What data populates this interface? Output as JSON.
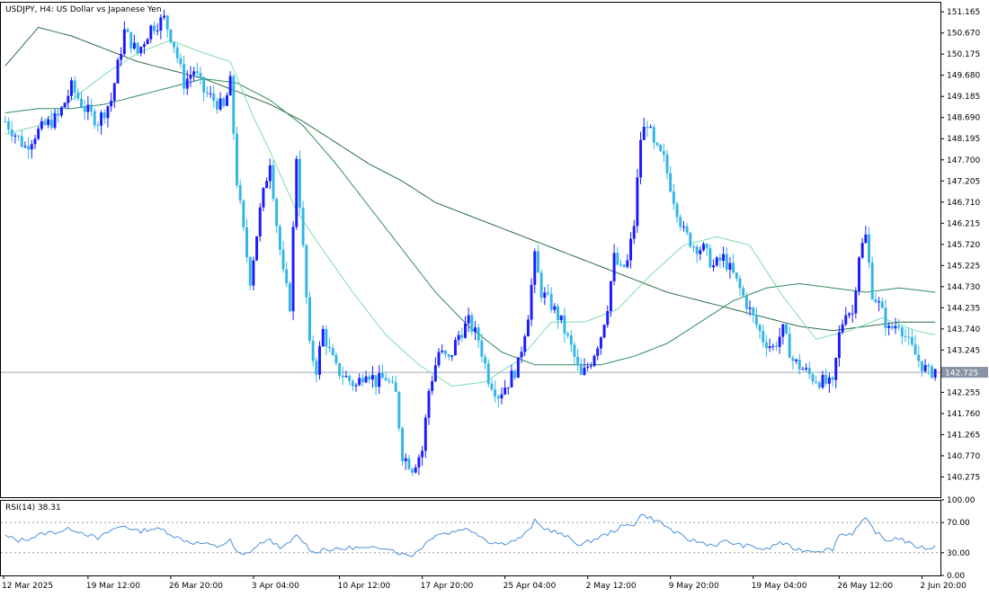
{
  "symbol_title": "USDJPY, H4:  US Dollar vs Japanese Yen",
  "current_price": 142.725,
  "current_price_label": "142.725",
  "rsi_label": "RSI(14) 38.31",
  "colors": {
    "bull": "#1a1aff",
    "bear": "#33b5e5",
    "ma_fast": "#7fdcb0",
    "ma_mid": "#2e8b57",
    "ma_slow": "#2f6b45",
    "rsi": "#4a90d9",
    "price_line": "#a0aab8",
    "price_tag_bg": "#8894a4",
    "grid_level": "#9a9a9a"
  },
  "chart_data": [
    {
      "type": "candlestick",
      "title": "USDJPY, H4:  US Dollar vs Japanese Yen",
      "ylim": [
        139.8,
        151.4
      ],
      "price_axis_ticks": [
        "151.165",
        "150.670",
        "150.175",
        "149.680",
        "149.185",
        "148.690",
        "148.195",
        "147.700",
        "147.205",
        "146.710",
        "146.215",
        "145.720",
        "145.225",
        "144.730",
        "144.235",
        "143.740",
        "143.245",
        "142.750",
        "142.255",
        "141.760",
        "141.265",
        "140.770",
        "140.275"
      ],
      "time_axis_labels": [
        "12 Mar 2025",
        "19 Mar 12:00",
        "26 Mar 20:00",
        "3 Apr 04:00",
        "10 Apr 12:00",
        "17 Apr 20:00",
        "25 Apr 04:00",
        "2 May 12:00",
        "9 May 20:00",
        "19 May 04:00",
        "26 May 12:00",
        "2 Jun 20:00"
      ],
      "close_path": [
        [
          0,
          148.6
        ],
        [
          3,
          148.3
        ],
        [
          6,
          148.0
        ],
        [
          9,
          148.3
        ],
        [
          12,
          148.5
        ],
        [
          16,
          148.7
        ],
        [
          20,
          149.4
        ],
        [
          24,
          148.9
        ],
        [
          28,
          148.6
        ],
        [
          32,
          149.1
        ],
        [
          36,
          150.7
        ],
        [
          40,
          150.2
        ],
        [
          44,
          150.8
        ],
        [
          48,
          151.0
        ],
        [
          51,
          150.4
        ],
        [
          54,
          149.5
        ],
        [
          57,
          149.8
        ],
        [
          60,
          149.3
        ],
        [
          63,
          149.1
        ],
        [
          66,
          148.9
        ],
        [
          68,
          149.5
        ],
        [
          70,
          147.2
        ],
        [
          72,
          146.0
        ],
        [
          74,
          144.9
        ],
        [
          77,
          146.5
        ],
        [
          80,
          147.7
        ],
        [
          82,
          146.2
        ],
        [
          84,
          145.0
        ],
        [
          86,
          144.3
        ],
        [
          88,
          147.8
        ],
        [
          90,
          145.6
        ],
        [
          92,
          143.3
        ],
        [
          94,
          142.8
        ],
        [
          96,
          143.7
        ],
        [
          98,
          143.2
        ],
        [
          100,
          142.8
        ],
        [
          103,
          142.6
        ],
        [
          106,
          142.4
        ],
        [
          109,
          142.8
        ],
        [
          112,
          142.5
        ],
        [
          115,
          142.6
        ],
        [
          118,
          142.2
        ],
        [
          120,
          140.8
        ],
        [
          123,
          140.5
        ],
        [
          126,
          140.9
        ],
        [
          128,
          142.3
        ],
        [
          131,
          143.2
        ],
        [
          134,
          143.0
        ],
        [
          137,
          143.6
        ],
        [
          140,
          143.9
        ],
        [
          143,
          143.5
        ],
        [
          146,
          142.6
        ],
        [
          149,
          142.2
        ],
        [
          152,
          142.5
        ],
        [
          155,
          142.9
        ],
        [
          158,
          144.1
        ],
        [
          160,
          145.4
        ],
        [
          162,
          144.6
        ],
        [
          165,
          144.3
        ],
        [
          168,
          143.9
        ],
        [
          171,
          143.3
        ],
        [
          174,
          142.6
        ],
        [
          177,
          143.0
        ],
        [
          180,
          143.6
        ],
        [
          182,
          144.3
        ],
        [
          184,
          145.4
        ],
        [
          186,
          145.1
        ],
        [
          188,
          145.3
        ],
        [
          190,
          146.2
        ],
        [
          192,
          148.2
        ],
        [
          194,
          148.6
        ],
        [
          196,
          148.0
        ],
        [
          199,
          147.7
        ],
        [
          202,
          146.8
        ],
        [
          205,
          146.0
        ],
        [
          208,
          145.7
        ],
        [
          211,
          145.6
        ],
        [
          214,
          145.2
        ],
        [
          217,
          145.4
        ],
        [
          220,
          145.0
        ],
        [
          223,
          144.5
        ],
        [
          226,
          144.0
        ],
        [
          229,
          143.5
        ],
        [
          232,
          143.3
        ],
        [
          235,
          143.7
        ],
        [
          238,
          143.0
        ],
        [
          241,
          142.8
        ],
        [
          244,
          142.6
        ],
        [
          247,
          142.5
        ],
        [
          250,
          142.4
        ],
        [
          252,
          143.6
        ],
        [
          254,
          144.2
        ],
        [
          256,
          144.1
        ],
        [
          258,
          145.5
        ],
        [
          260,
          145.9
        ],
        [
          262,
          144.6
        ],
        [
          264,
          144.3
        ],
        [
          267,
          143.7
        ],
        [
          270,
          143.9
        ],
        [
          273,
          143.4
        ],
        [
          276,
          143.0
        ],
        [
          279,
          142.7
        ],
        [
          281,
          142.8
        ]
      ],
      "ma_fast_path": [
        [
          0,
          148.3
        ],
        [
          10,
          148.5
        ],
        [
          20,
          149.1
        ],
        [
          30,
          149.7
        ],
        [
          40,
          150.2
        ],
        [
          50,
          150.5
        ],
        [
          60,
          150.2
        ],
        [
          68,
          150.0
        ],
        [
          75,
          148.7
        ],
        [
          80,
          147.9
        ],
        [
          88,
          146.5
        ],
        [
          95,
          145.7
        ],
        [
          105,
          144.6
        ],
        [
          115,
          143.6
        ],
        [
          125,
          142.9
        ],
        [
          135,
          142.4
        ],
        [
          145,
          142.5
        ],
        [
          155,
          143.0
        ],
        [
          165,
          143.9
        ],
        [
          175,
          143.9
        ],
        [
          185,
          144.2
        ],
        [
          195,
          145.0
        ],
        [
          205,
          145.7
        ],
        [
          215,
          145.9
        ],
        [
          225,
          145.7
        ],
        [
          235,
          144.5
        ],
        [
          245,
          143.5
        ],
        [
          255,
          143.7
        ],
        [
          265,
          144.0
        ],
        [
          275,
          143.7
        ],
        [
          281,
          143.6
        ]
      ],
      "ma_mid_path": [
        [
          0,
          148.8
        ],
        [
          10,
          148.9
        ],
        [
          20,
          148.9
        ],
        [
          30,
          149.0
        ],
        [
          40,
          149.2
        ],
        [
          50,
          149.4
        ],
        [
          60,
          149.6
        ],
        [
          70,
          149.5
        ],
        [
          80,
          149.1
        ],
        [
          90,
          148.5
        ],
        [
          100,
          147.6
        ],
        [
          110,
          146.6
        ],
        [
          120,
          145.6
        ],
        [
          130,
          144.6
        ],
        [
          140,
          143.8
        ],
        [
          150,
          143.2
        ],
        [
          160,
          142.9
        ],
        [
          170,
          142.9
        ],
        [
          180,
          142.9
        ],
        [
          190,
          143.1
        ],
        [
          200,
          143.4
        ],
        [
          210,
          143.9
        ],
        [
          220,
          144.4
        ],
        [
          230,
          144.7
        ],
        [
          240,
          144.8
        ],
        [
          250,
          144.7
        ],
        [
          260,
          144.6
        ],
        [
          270,
          144.7
        ],
        [
          281,
          144.6
        ]
      ],
      "ma_slow_path": [
        [
          0,
          149.9
        ],
        [
          10,
          150.8
        ],
        [
          20,
          150.6
        ],
        [
          30,
          150.3
        ],
        [
          40,
          150.0
        ],
        [
          50,
          149.8
        ],
        [
          60,
          149.6
        ],
        [
          70,
          149.3
        ],
        [
          80,
          149.0
        ],
        [
          90,
          148.6
        ],
        [
          100,
          148.1
        ],
        [
          110,
          147.6
        ],
        [
          120,
          147.2
        ],
        [
          130,
          146.7
        ],
        [
          140,
          146.4
        ],
        [
          150,
          146.1
        ],
        [
          160,
          145.8
        ],
        [
          170,
          145.5
        ],
        [
          180,
          145.2
        ],
        [
          190,
          144.9
        ],
        [
          200,
          144.6
        ],
        [
          210,
          144.4
        ],
        [
          220,
          144.2
        ],
        [
          230,
          144.0
        ],
        [
          240,
          143.8
        ],
        [
          250,
          143.7
        ],
        [
          260,
          143.8
        ],
        [
          270,
          143.9
        ],
        [
          281,
          143.9
        ]
      ]
    },
    {
      "type": "line",
      "title": "RSI(14) 38.31",
      "ylim": [
        0,
        100
      ],
      "levels": [
        30,
        70
      ],
      "axis_ticks": [
        "100.00",
        "70.00",
        "30.00",
        "0.00"
      ],
      "last_value": 38.31,
      "series_path": [
        [
          0,
          52
        ],
        [
          4,
          46
        ],
        [
          8,
          50
        ],
        [
          12,
          56
        ],
        [
          16,
          58
        ],
        [
          20,
          62
        ],
        [
          24,
          56
        ],
        [
          28,
          48
        ],
        [
          32,
          60
        ],
        [
          36,
          66
        ],
        [
          40,
          58
        ],
        [
          44,
          62
        ],
        [
          48,
          60
        ],
        [
          52,
          50
        ],
        [
          56,
          44
        ],
        [
          60,
          42
        ],
        [
          64,
          38
        ],
        [
          68,
          46
        ],
        [
          70,
          30
        ],
        [
          72,
          26
        ],
        [
          75,
          35
        ],
        [
          78,
          45
        ],
        [
          80,
          46
        ],
        [
          84,
          36
        ],
        [
          88,
          52
        ],
        [
          90,
          45
        ],
        [
          93,
          30
        ],
        [
          96,
          35
        ],
        [
          100,
          34
        ],
        [
          105,
          37
        ],
        [
          110,
          35
        ],
        [
          115,
          38
        ],
        [
          120,
          28
        ],
        [
          123,
          27
        ],
        [
          126,
          38
        ],
        [
          130,
          55
        ],
        [
          134,
          56
        ],
        [
          138,
          62
        ],
        [
          142,
          58
        ],
        [
          146,
          45
        ],
        [
          150,
          42
        ],
        [
          155,
          48
        ],
        [
          158,
          58
        ],
        [
          160,
          72
        ],
        [
          162,
          64
        ],
        [
          166,
          58
        ],
        [
          170,
          50
        ],
        [
          174,
          40
        ],
        [
          178,
          48
        ],
        [
          182,
          55
        ],
        [
          186,
          64
        ],
        [
          190,
          68
        ],
        [
          192,
          80
        ],
        [
          194,
          78
        ],
        [
          198,
          70
        ],
        [
          202,
          58
        ],
        [
          206,
          48
        ],
        [
          210,
          44
        ],
        [
          214,
          40
        ],
        [
          218,
          45
        ],
        [
          222,
          40
        ],
        [
          226,
          38
        ],
        [
          230,
          34
        ],
        [
          234,
          44
        ],
        [
          238,
          36
        ],
        [
          242,
          33
        ],
        [
          246,
          33
        ],
        [
          250,
          35
        ],
        [
          252,
          54
        ],
        [
          256,
          56
        ],
        [
          258,
          66
        ],
        [
          260,
          74
        ],
        [
          263,
          58
        ],
        [
          266,
          46
        ],
        [
          270,
          50
        ],
        [
          274,
          40
        ],
        [
          278,
          36
        ],
        [
          281,
          38
        ]
      ]
    }
  ]
}
